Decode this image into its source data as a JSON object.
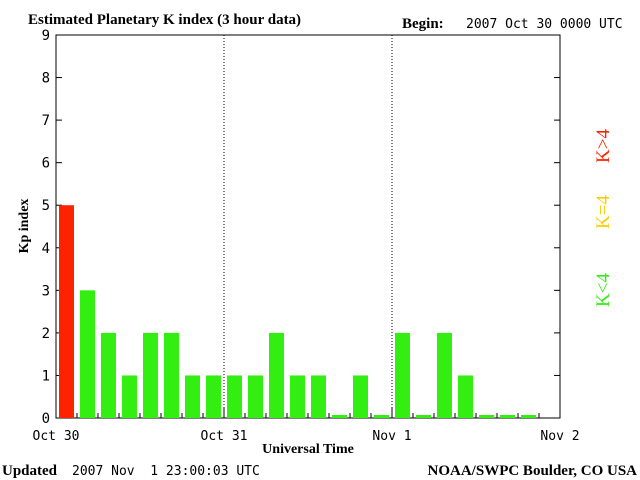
{
  "header": {
    "title": "Estimated Planetary K index (3 hour data)",
    "begin_label": "Begin:",
    "begin_value": "2007 Oct 30 0000 UTC"
  },
  "footer": {
    "updated_label": "Updated",
    "updated_value": "2007 Nov  1 23:00:03 UTC",
    "source": "NOAA/SWPC Boulder, CO USA"
  },
  "legend": {
    "low": {
      "text": "K<4",
      "color": "#33ee11"
    },
    "mid": {
      "text": "K=4",
      "color": "#ffcc00"
    },
    "high": {
      "text": "K>4",
      "color": "#ff2200"
    }
  },
  "chart_data": {
    "type": "bar",
    "title": "Estimated Planetary K index (3 hour data)",
    "xlabel": "Universal Time",
    "ylabel": "Kp index",
    "ylim": [
      0,
      9
    ],
    "yticks": [
      "0",
      "1",
      "2",
      "3",
      "4",
      "5",
      "6",
      "7",
      "8",
      "9"
    ],
    "xticks": [
      "Oct 30",
      "Oct 31",
      "Nov 1",
      "Nov 2"
    ],
    "day_dividers": [
      "Oct 31",
      "Nov 1"
    ],
    "interval_hours": 3,
    "values": [
      5,
      3,
      2,
      1,
      2,
      2,
      1,
      1,
      1,
      1,
      2,
      1,
      1,
      0,
      1,
      0,
      2,
      0,
      2,
      1,
      0,
      0,
      0
    ],
    "colors": {
      "below_4": "#33ee11",
      "equal_4": "#ffcc00",
      "above_4": "#ff2200"
    }
  }
}
